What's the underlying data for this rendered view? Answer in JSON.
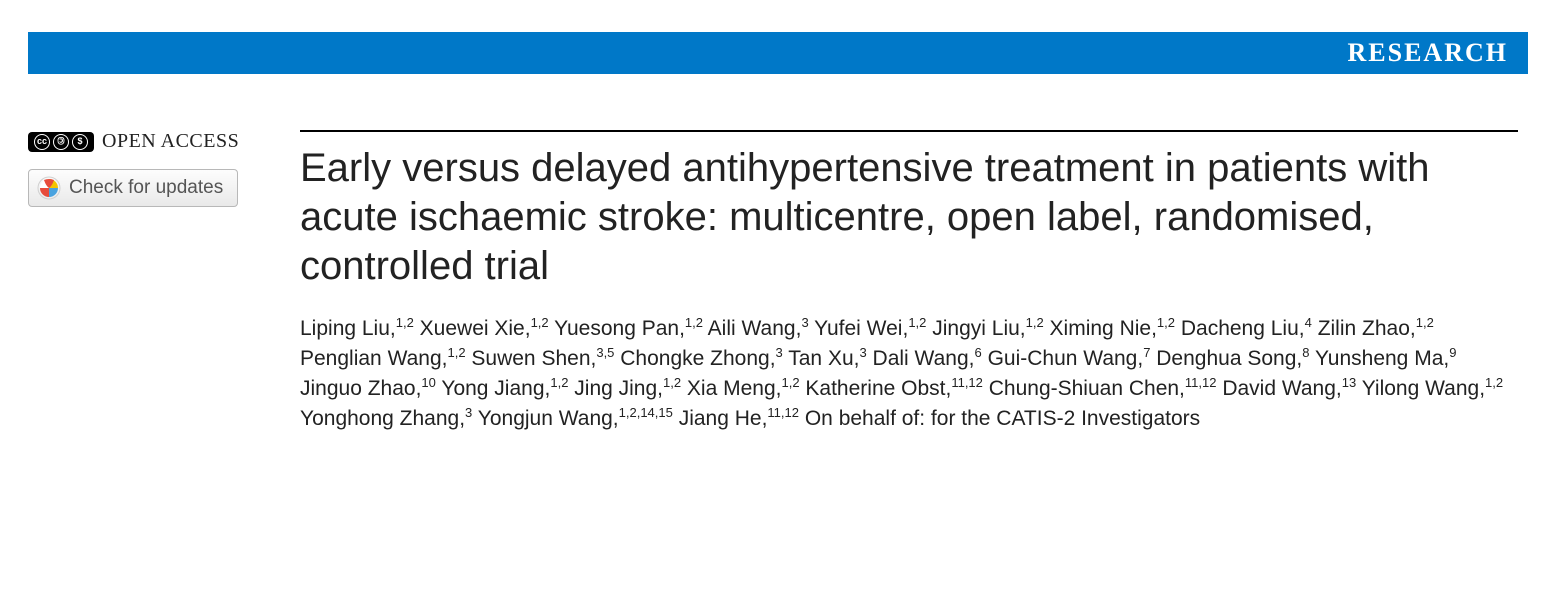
{
  "banner": {
    "label": "RESEARCH",
    "bg": "#0078c8",
    "fg": "#ffffff"
  },
  "left": {
    "open_access_label": "OPEN ACCESS",
    "cc_icons": [
      "cc",
      "by",
      "nc"
    ],
    "updates_label": "Check for updates"
  },
  "article": {
    "title": "Early versus delayed antihypertensive treatment in patients with acute ischaemic stroke: multicentre, open label, randomised, controlled trial",
    "authors": [
      {
        "name": "Liping Liu",
        "aff": "1,2"
      },
      {
        "name": "Xuewei Xie",
        "aff": "1,2"
      },
      {
        "name": "Yuesong Pan",
        "aff": "1,2"
      },
      {
        "name": "Aili Wang",
        "aff": "3"
      },
      {
        "name": "Yufei Wei",
        "aff": "1,2"
      },
      {
        "name": "Jingyi Liu",
        "aff": "1,2"
      },
      {
        "name": "Ximing Nie",
        "aff": "1,2"
      },
      {
        "name": "Dacheng Liu",
        "aff": "4"
      },
      {
        "name": "Zilin Zhao",
        "aff": "1,2"
      },
      {
        "name": "Penglian Wang",
        "aff": "1,2"
      },
      {
        "name": "Suwen Shen",
        "aff": "3,5"
      },
      {
        "name": "Chongke Zhong",
        "aff": "3"
      },
      {
        "name": "Tan Xu",
        "aff": "3"
      },
      {
        "name": "Dali Wang",
        "aff": "6"
      },
      {
        "name": "Gui-Chun Wang",
        "aff": "7"
      },
      {
        "name": "Denghua Song",
        "aff": "8"
      },
      {
        "name": "Yunsheng Ma",
        "aff": "9"
      },
      {
        "name": "Jinguo Zhao",
        "aff": "10"
      },
      {
        "name": "Yong Jiang",
        "aff": "1,2"
      },
      {
        "name": "Jing Jing",
        "aff": "1,2"
      },
      {
        "name": "Xia Meng",
        "aff": "1,2"
      },
      {
        "name": "Katherine Obst",
        "aff": "11,12"
      },
      {
        "name": "Chung-Shiuan Chen",
        "aff": "11,12"
      },
      {
        "name": "David Wang",
        "aff": "13"
      },
      {
        "name": "Yilong Wang",
        "aff": "1,2"
      },
      {
        "name": "Yonghong Zhang",
        "aff": "3"
      },
      {
        "name": "Yongjun Wang",
        "aff": "1,2,14,15"
      },
      {
        "name": "Jiang He",
        "aff": "11,12"
      }
    ],
    "authors_suffix": "On behalf of: for the CATIS-2 Investigators"
  },
  "style": {
    "rule_color": "#000000",
    "title_fontsize": 40,
    "author_fontsize": 21,
    "banner_fontsize": 26
  }
}
